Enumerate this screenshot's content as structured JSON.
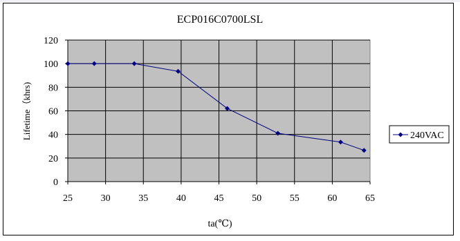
{
  "chart_data": {
    "type": "line",
    "title": "ECP016C0700LSL",
    "xlabel": "ta(℃)",
    "ylabel": "Lifetime（khrs)",
    "xlim": [
      25,
      65
    ],
    "ylim": [
      0,
      120
    ],
    "x_ticks": [
      25,
      30,
      35,
      40,
      45,
      50,
      55,
      60,
      65
    ],
    "y_ticks": [
      0,
      20,
      40,
      60,
      80,
      100,
      120
    ],
    "grid": true,
    "legend": "right",
    "plot_background": "#c0c0c0",
    "series": [
      {
        "name": "240VAC",
        "color": "#000080",
        "x": [
          25,
          28.5,
          33.8,
          39.6,
          46.1,
          52.8,
          61.1,
          64.2
        ],
        "y": [
          100,
          100,
          100,
          93.5,
          62,
          41,
          33.5,
          26.5
        ]
      }
    ]
  }
}
